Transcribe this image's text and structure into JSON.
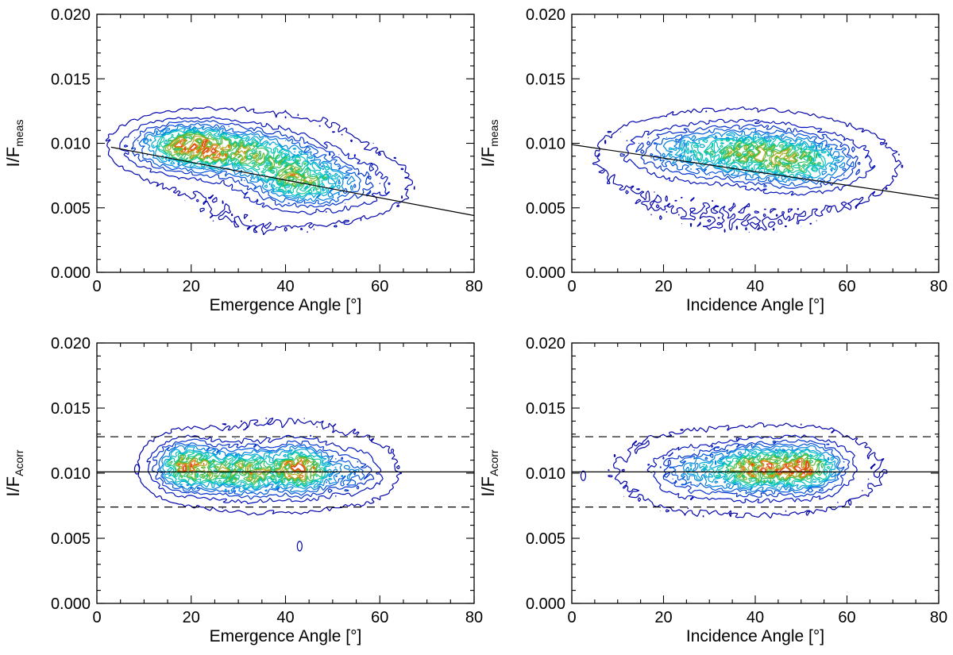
{
  "chart_data": [
    {
      "id": "p1",
      "type": "contour",
      "xlabel": "Emergence Angle [°]",
      "ylabel": {
        "main": "I/F",
        "sub": "meas"
      },
      "xlim": [
        0,
        80
      ],
      "ylim": [
        0.0,
        0.02
      ],
      "xticks": [
        0,
        20,
        40,
        60,
        80
      ],
      "xtick_labels": [
        "0",
        "20",
        "40",
        "60",
        "80"
      ],
      "yticks": [
        0.0,
        0.005,
        0.01,
        0.015,
        0.02
      ],
      "ytick_labels": [
        "0.000",
        "0.005",
        "0.010",
        "0.015",
        "0.020"
      ],
      "reference_lines": [
        {
          "style": "solid",
          "x": [
            3,
            80
          ],
          "y": [
            0.0097,
            0.0044
          ]
        }
      ],
      "density_peaks": [
        {
          "x": 19,
          "y": 0.0098,
          "sx": 7,
          "sy": 0.0011,
          "w": 1.0
        },
        {
          "x": 32,
          "y": 0.0092,
          "sx": 8,
          "sy": 0.0011,
          "w": 0.75
        },
        {
          "x": 42,
          "y": 0.0073,
          "sx": 6,
          "sy": 0.0012,
          "w": 0.7
        },
        {
          "x": 50,
          "y": 0.0068,
          "sx": 8,
          "sy": 0.0012,
          "w": 0.35
        }
      ],
      "contour_levels": 13,
      "data_region": {
        "x": [
          10,
          65
        ],
        "y": [
          0.0015,
          0.0138
        ]
      },
      "contour_colors": [
        "#0000aa",
        "#0010bb",
        "#0030cc",
        "#0055dd",
        "#0080e0",
        "#00a5d8",
        "#00bfc5",
        "#10c8a0",
        "#30c060",
        "#60b830",
        "#b0a820",
        "#e07010",
        "#e04010"
      ],
      "stray_points": []
    },
    {
      "id": "p2",
      "type": "contour",
      "xlabel": "Incidence Angle [°]",
      "ylabel": {
        "main": "I/F",
        "sub": "meas"
      },
      "xlim": [
        0,
        80
      ],
      "ylim": [
        0.0,
        0.02
      ],
      "xticks": [
        0,
        20,
        40,
        60,
        80
      ],
      "xtick_labels": [
        "0",
        "20",
        "40",
        "60",
        "80"
      ],
      "yticks": [
        0.0,
        0.005,
        0.01,
        0.015,
        0.02
      ],
      "ytick_labels": [
        "0.000",
        "0.005",
        "0.010",
        "0.015",
        "0.020"
      ],
      "reference_lines": [
        {
          "style": "solid",
          "x": [
            0,
            80
          ],
          "y": [
            0.0099,
            0.0057
          ]
        }
      ],
      "density_peaks": [
        {
          "x": 38,
          "y": 0.0094,
          "sx": 9,
          "sy": 0.0012,
          "w": 0.8
        },
        {
          "x": 50,
          "y": 0.0085,
          "sx": 8,
          "sy": 0.0012,
          "w": 0.8
        },
        {
          "x": 24,
          "y": 0.0093,
          "sx": 8,
          "sy": 0.0012,
          "w": 0.4
        }
      ],
      "contour_levels": 11,
      "data_region": {
        "x": [
          2,
          74
        ],
        "y": [
          0.0018,
          0.0132
        ]
      },
      "contour_colors": [
        "#0000aa",
        "#0010bb",
        "#0030cc",
        "#0055dd",
        "#0080e0",
        "#00a5d8",
        "#00bfc5",
        "#10c8a0",
        "#30c060",
        "#60b830",
        "#b0a820"
      ],
      "stray_points": []
    },
    {
      "id": "p3",
      "type": "contour",
      "xlabel": "Emergence Angle [°]",
      "ylabel": {
        "main": "I/F",
        "sub": "Acorr"
      },
      "xlim": [
        0,
        80
      ],
      "ylim": [
        0.0,
        0.02
      ],
      "xticks": [
        0,
        20,
        40,
        60,
        80
      ],
      "xtick_labels": [
        "0",
        "20",
        "40",
        "60",
        "80"
      ],
      "yticks": [
        0.0,
        0.005,
        0.01,
        0.015,
        0.02
      ],
      "ytick_labels": [
        "0.000",
        "0.005",
        "0.010",
        "0.015",
        "0.020"
      ],
      "reference_lines": [
        {
          "style": "solid",
          "x": [
            0,
            80
          ],
          "y": [
            0.0101,
            0.0101
          ]
        },
        {
          "style": "dashed",
          "x": [
            0,
            80
          ],
          "y": [
            0.0128,
            0.0128
          ]
        },
        {
          "style": "dashed",
          "x": [
            0,
            80
          ],
          "y": [
            0.0074,
            0.0074
          ]
        }
      ],
      "density_peaks": [
        {
          "x": 19,
          "y": 0.0105,
          "sx": 4,
          "sy": 0.0011,
          "w": 0.9
        },
        {
          "x": 28,
          "y": 0.0101,
          "sx": 4,
          "sy": 0.0011,
          "w": 0.6
        },
        {
          "x": 34,
          "y": 0.0101,
          "sx": 3,
          "sy": 0.0011,
          "w": 0.55
        },
        {
          "x": 43,
          "y": 0.0103,
          "sx": 4,
          "sy": 0.0011,
          "w": 1.0
        },
        {
          "x": 54,
          "y": 0.01,
          "sx": 4,
          "sy": 0.001,
          "w": 0.3
        }
      ],
      "contour_levels": 13,
      "data_region": {
        "x": [
          12,
          67
        ],
        "y": [
          0.0064,
          0.0148
        ]
      },
      "contour_colors": [
        "#0000aa",
        "#0010bb",
        "#0030cc",
        "#0055dd",
        "#0080e0",
        "#00a5d8",
        "#00bfc5",
        "#10c8a0",
        "#30c060",
        "#60b830",
        "#b0a820",
        "#e07010",
        "#e04010"
      ],
      "stray_points": [
        {
          "x": 8.5,
          "y": 0.0103
        },
        {
          "x": 43,
          "y": 0.0044
        }
      ]
    },
    {
      "id": "p4",
      "type": "contour",
      "xlabel": "Incidence Angle [°]",
      "ylabel": {
        "main": "I/F",
        "sub": "Acorr"
      },
      "xlim": [
        0,
        80
      ],
      "ylim": [
        0.0,
        0.02
      ],
      "xticks": [
        0,
        20,
        40,
        60,
        80
      ],
      "xtick_labels": [
        "0",
        "20",
        "40",
        "60",
        "80"
      ],
      "yticks": [
        0.0,
        0.005,
        0.01,
        0.015,
        0.02
      ],
      "ytick_labels": [
        "0.000",
        "0.005",
        "0.010",
        "0.015",
        "0.020"
      ],
      "reference_lines": [
        {
          "style": "solid",
          "x": [
            0,
            80
          ],
          "y": [
            0.0101,
            0.0101
          ]
        },
        {
          "style": "dashed",
          "x": [
            0,
            80
          ],
          "y": [
            0.0128,
            0.0128
          ]
        },
        {
          "style": "dashed",
          "x": [
            0,
            80
          ],
          "y": [
            0.0074,
            0.0074
          ]
        }
      ],
      "density_peaks": [
        {
          "x": 40,
          "y": 0.0103,
          "sx": 5,
          "sy": 0.0011,
          "w": 0.9
        },
        {
          "x": 51,
          "y": 0.0104,
          "sx": 5,
          "sy": 0.0011,
          "w": 1.0
        },
        {
          "x": 28,
          "y": 0.0101,
          "sx": 6,
          "sy": 0.0011,
          "w": 0.45
        }
      ],
      "contour_levels": 13,
      "data_region": {
        "x": [
          1,
          75
        ],
        "y": [
          0.0058,
          0.0145
        ]
      },
      "contour_colors": [
        "#0000aa",
        "#0010bb",
        "#0030cc",
        "#0055dd",
        "#0080e0",
        "#00a5d8",
        "#00bfc5",
        "#10c8a0",
        "#30c060",
        "#60b830",
        "#b0a820",
        "#e07010",
        "#e04010"
      ],
      "stray_points": [
        {
          "x": 2.5,
          "y": 0.0098
        }
      ]
    }
  ]
}
